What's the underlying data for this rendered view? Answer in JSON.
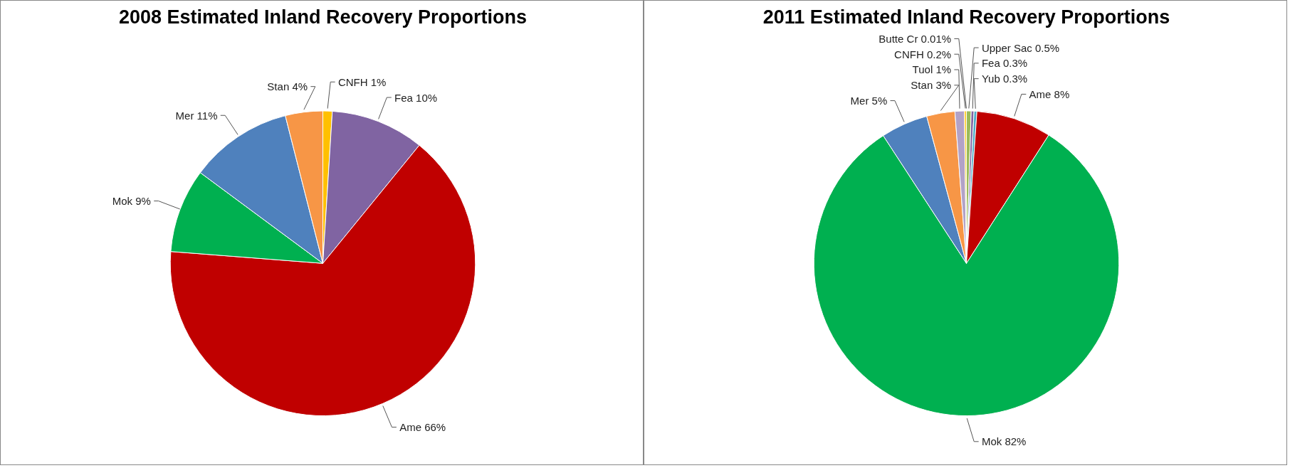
{
  "chart_data": [
    {
      "type": "pie",
      "title": "2008 Estimated Inland Recovery Proportions",
      "categories": [
        "CNFH",
        "Fea",
        "Ame",
        "Mok",
        "Mer",
        "Stan"
      ],
      "values": [
        1,
        10,
        66,
        9,
        11,
        4
      ],
      "value_labels": [
        "1%",
        "10%",
        "66%",
        "9%",
        "11%",
        "4%"
      ],
      "colors": [
        "#ffc000",
        "#8064a2",
        "#c00000",
        "#00b050",
        "#4f81bd",
        "#f79646"
      ]
    },
    {
      "type": "pie",
      "title": "2011 Estimated Inland Recovery Proportions",
      "categories": [
        "Upper Sac",
        "Fea",
        "Yub",
        "Ame",
        "Mok",
        "Mer",
        "Stan",
        "Tuol",
        "CNFH",
        "Butte Cr"
      ],
      "values": [
        0.5,
        0.3,
        0.3,
        8,
        82,
        5,
        3,
        1,
        0.2,
        0.01
      ],
      "value_labels": [
        "0.5%",
        "0.3%",
        "0.3%",
        "8%",
        "82%",
        "5%",
        "3%",
        "1%",
        "0.2%",
        "0.01%"
      ],
      "colors": [
        "#9bbb59",
        "#8064a2",
        "#4bacc6",
        "#c00000",
        "#00b050",
        "#4f81bd",
        "#f79646",
        "#b2a2c7",
        "#ffc000",
        "#c0504d"
      ]
    }
  ]
}
